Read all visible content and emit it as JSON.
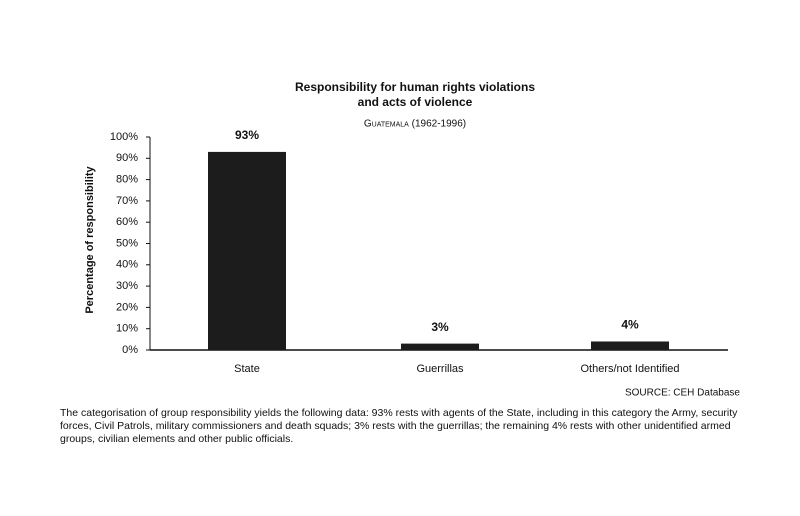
{
  "chart_data": {
    "type": "bar",
    "title": [
      "Responsibility for human rights violations",
      "and acts of violence"
    ],
    "subtitle": "Guatemala (1962-1996)",
    "y_label": "Percentage of responsibility",
    "categories": [
      "State",
      "Guerrillas",
      "Others/not Identified"
    ],
    "values": [
      93,
      3,
      4
    ],
    "value_labels": [
      "93%",
      "3%",
      "4%"
    ],
    "color": "#1c1c1c",
    "ylim": [
      0,
      100
    ],
    "yticks": [
      {
        "value": 0,
        "label": "0%"
      },
      {
        "value": 10,
        "label": "10%"
      },
      {
        "value": 20,
        "label": "20%"
      },
      {
        "value": 30,
        "label": "30%"
      },
      {
        "value": 40,
        "label": "40%"
      },
      {
        "value": 50,
        "label": "50%"
      },
      {
        "value": 60,
        "label": "60%"
      },
      {
        "value": 70,
        "label": "70%"
      },
      {
        "value": 80,
        "label": "80%"
      },
      {
        "value": 90,
        "label": "90%"
      },
      {
        "value": 100,
        "label": "100%"
      }
    ],
    "grid": false,
    "source": "SOURCE: CEH Database"
  },
  "caption": "The categorisation of group responsibility yields the following data: 93% rests with agents of the State, including in this category the Army, security forces, Civil Patrols, military commissioners and death squads; 3% rests with the guerrillas; the remaining 4% rests with other unidentified armed groups, civilian elements and other public officials."
}
